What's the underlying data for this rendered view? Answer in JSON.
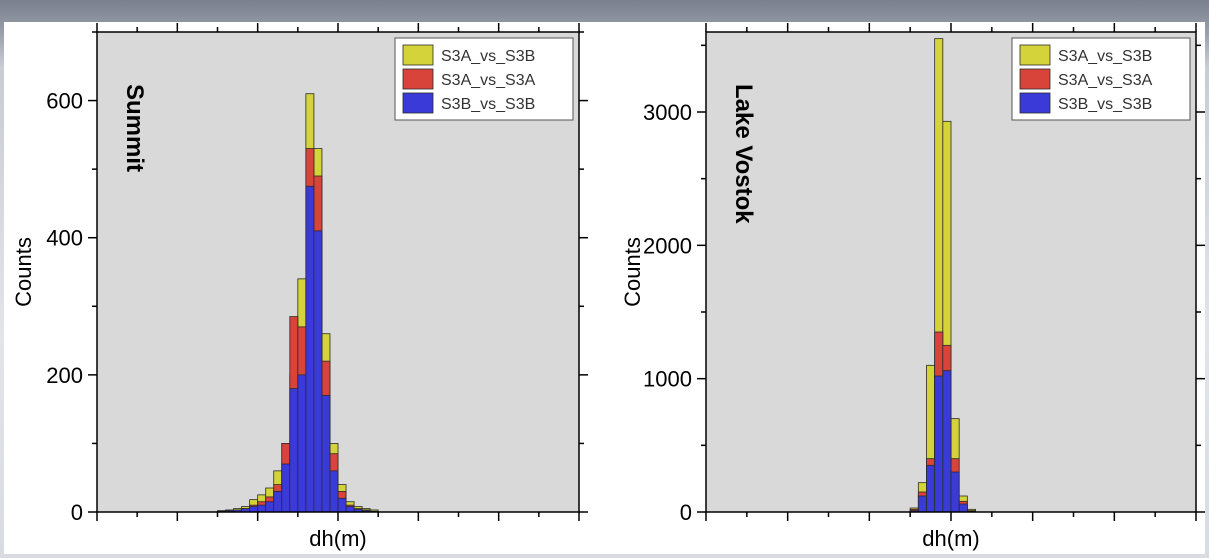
{
  "colors": {
    "plot_bg": "#d9d9d9",
    "S3A_vs_S3B": "#d4d43a",
    "S3A_vs_S3A": "#d9443a",
    "S3B_vs_S3B": "#3a3ad9",
    "edge": "#2a2a2a"
  },
  "chart_data": [
    {
      "type": "bar",
      "title": "Summit",
      "xlabel": "dh(m)",
      "ylabel": "Counts",
      "ylim": [
        0,
        700
      ],
      "yticks": [
        0,
        200,
        400,
        600
      ],
      "bin_range": [
        -3,
        3
      ],
      "bin_width": 0.1,
      "legend_position": "top-right",
      "grid": false,
      "series": [
        {
          "name": "S3A_vs_S3B",
          "key": "S3A_vs_S3B",
          "start": -1.5,
          "values": [
            2,
            3,
            5,
            8,
            18,
            25,
            35,
            60,
            100,
            200,
            340,
            610,
            530,
            260,
            100,
            40,
            15,
            8,
            5,
            3
          ]
        },
        {
          "name": "S3A_vs_S3A",
          "key": "S3A_vs_S3A",
          "start": -1.5,
          "values": [
            1,
            2,
            3,
            5,
            10,
            15,
            22,
            40,
            100,
            285,
            270,
            530,
            490,
            220,
            85,
            30,
            10,
            5,
            3,
            1
          ]
        },
        {
          "name": "S3B_vs_S3B",
          "key": "S3B_vs_S3B",
          "start": -1.5,
          "values": [
            1,
            2,
            3,
            5,
            8,
            10,
            15,
            30,
            70,
            180,
            200,
            475,
            410,
            170,
            60,
            20,
            8,
            4,
            2,
            1
          ]
        }
      ]
    },
    {
      "type": "bar",
      "title": "Lake Vostok",
      "xlabel": "dh(m)",
      "ylabel": "Counts",
      "ylim": [
        0,
        3600
      ],
      "yticks": [
        0,
        1000,
        2000,
        3000
      ],
      "bin_range": [
        -3,
        3
      ],
      "bin_width": 0.1,
      "legend_position": "top-right",
      "grid": false,
      "series": [
        {
          "name": "S3A_vs_S3B",
          "key": "S3A_vs_S3B",
          "start": -0.5,
          "values": [
            30,
            220,
            1100,
            3550,
            2930,
            700,
            120,
            20
          ]
        },
        {
          "name": "S3A_vs_S3A",
          "key": "S3A_vs_S3A",
          "start": -0.5,
          "values": [
            20,
            150,
            400,
            1350,
            1250,
            400,
            80,
            10
          ]
        },
        {
          "name": "S3B_vs_S3B",
          "key": "S3B_vs_S3B",
          "start": -0.5,
          "values": [
            10,
            120,
            350,
            1020,
            1060,
            300,
            60,
            5
          ]
        }
      ]
    }
  ]
}
